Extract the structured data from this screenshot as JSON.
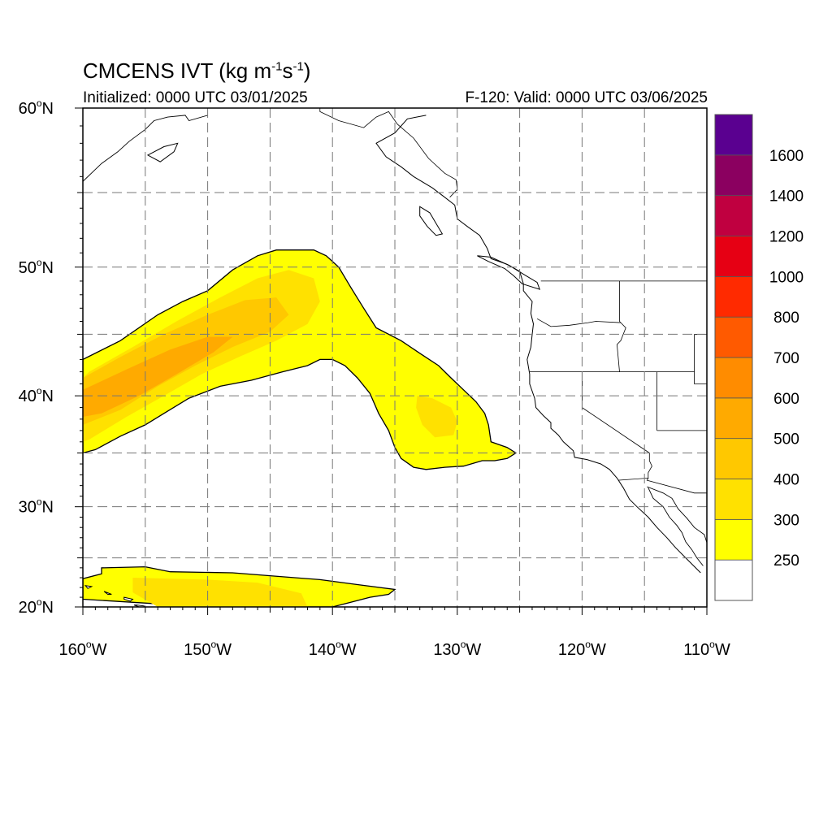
{
  "title": {
    "main": "CMCENS IVT (kg m",
    "exp1": "-1",
    "mid": "s",
    "exp2": "-1",
    "close": ")"
  },
  "subtitle_left": "Initialized: 0000 UTC 03/01/2025",
  "subtitle_right": "F-120: Valid: 0000 UTC 03/06/2025",
  "colorbar": {
    "labels": [
      "250",
      "300",
      "400",
      "500",
      "600",
      "700",
      "800",
      "1000",
      "1200",
      "1400",
      "1600"
    ],
    "colors": [
      "#ffffff",
      "#ffff00",
      "#ffe100",
      "#ffc800",
      "#ffaa00",
      "#ff8c00",
      "#ff5a00",
      "#ff2a00",
      "#e60014",
      "#c00040",
      "#8b0060",
      "#5a0090"
    ]
  },
  "chart_data": {
    "type": "heatmap",
    "title": "CMCENS IVT (kg m-1 s-1)",
    "xlim": [
      -160,
      -110
    ],
    "ylim": [
      20,
      60
    ],
    "grid": true,
    "x_tick_values": [
      -160,
      -150,
      -140,
      -130,
      -120,
      -110
    ],
    "x_tick_labels": [
      "160",
      "150",
      "140",
      "130",
      "120",
      "110"
    ],
    "x_tick_suffix": "W",
    "y_tick_values": [
      20,
      30,
      40,
      50,
      60
    ],
    "y_tick_labels": [
      "20",
      "30",
      "40",
      "50",
      "60"
    ],
    "y_tick_suffix": "N",
    "level_boundaries": [
      250,
      300,
      400,
      500,
      600,
      700,
      800,
      1000,
      1200,
      1400,
      1600
    ],
    "regions": [
      {
        "name": "",
        "level": 250,
        "polygon": [
          [
            -160,
            43
          ],
          [
            -157,
            44.5
          ],
          [
            -154,
            46.5
          ],
          [
            -152,
            47.5
          ],
          [
            -150,
            48.3
          ],
          [
            -148,
            49.8
          ],
          [
            -146,
            50.8
          ],
          [
            -144.5,
            51.2
          ],
          [
            -141.5,
            51.2
          ],
          [
            -140.5,
            50.8
          ],
          [
            -139.5,
            50
          ],
          [
            -138.5,
            48.5
          ],
          [
            -137.5,
            47
          ],
          [
            -136.5,
            45.5
          ],
          [
            -134.5,
            44.5
          ],
          [
            -133,
            43.5
          ],
          [
            -131.5,
            42.5
          ],
          [
            -130.5,
            41.5
          ],
          [
            -129.5,
            40.5
          ],
          [
            -128.5,
            39.5
          ],
          [
            -127.8,
            38.5
          ],
          [
            -127.5,
            37.5
          ],
          [
            -127.3,
            36
          ],
          [
            -126,
            35.5
          ],
          [
            -125.3,
            35
          ],
          [
            -126,
            34.5
          ],
          [
            -127,
            34.3
          ],
          [
            -128,
            34.3
          ],
          [
            -129.5,
            33.8
          ],
          [
            -131,
            33.7
          ],
          [
            -132.5,
            33.5
          ],
          [
            -133.5,
            33.7
          ],
          [
            -134.5,
            34.5
          ],
          [
            -135,
            35.5
          ],
          [
            -135.5,
            37
          ],
          [
            -136.3,
            38.5
          ],
          [
            -137,
            40.2
          ],
          [
            -138,
            41.5
          ],
          [
            -139,
            42.5
          ],
          [
            -140,
            43
          ],
          [
            -141,
            43
          ],
          [
            -142,
            42.5
          ],
          [
            -144,
            42
          ],
          [
            -146.5,
            41.3
          ],
          [
            -149,
            40.8
          ],
          [
            -151.5,
            39.8
          ],
          [
            -153.5,
            38.5
          ],
          [
            -155,
            37.5
          ],
          [
            -157,
            36.5
          ],
          [
            -159,
            35.3
          ],
          [
            -160,
            35
          ]
        ]
      },
      {
        "name": "",
        "level": 300,
        "polygon": [
          [
            -159.5,
            42
          ],
          [
            -156,
            44
          ],
          [
            -152.5,
            46
          ],
          [
            -149,
            47.8
          ],
          [
            -146,
            49.2
          ],
          [
            -143.5,
            49.8
          ],
          [
            -141.5,
            49.2
          ],
          [
            -141,
            47.5
          ],
          [
            -142,
            45.8
          ],
          [
            -144.5,
            44.5
          ],
          [
            -147.5,
            43.2
          ],
          [
            -150.5,
            41.8
          ],
          [
            -153.5,
            40
          ],
          [
            -156.5,
            38.2
          ],
          [
            -159.5,
            36.2
          ],
          [
            -160,
            36
          ],
          [
            -160,
            41.5
          ]
        ]
      },
      {
        "name": "",
        "level": 400,
        "polygon": [
          [
            -160,
            41.5
          ],
          [
            -157,
            43.2
          ],
          [
            -153.5,
            45
          ],
          [
            -150,
            46.5
          ],
          [
            -147,
            47.6
          ],
          [
            -144.5,
            47.8
          ],
          [
            -143.5,
            46.5
          ],
          [
            -145,
            45.2
          ],
          [
            -148,
            44
          ],
          [
            -151,
            42.5
          ],
          [
            -154,
            40.8
          ],
          [
            -157,
            38.8
          ],
          [
            -160,
            37.5
          ]
        ]
      },
      {
        "name": "",
        "level": 500,
        "polygon": [
          [
            -160,
            40.5
          ],
          [
            -156.5,
            42.2
          ],
          [
            -153,
            43.8
          ],
          [
            -150,
            44.8
          ],
          [
            -148,
            44.8
          ],
          [
            -149.5,
            43.6
          ],
          [
            -152.5,
            41.8
          ],
          [
            -155.5,
            40
          ],
          [
            -158.5,
            38.5
          ],
          [
            -160,
            38.2
          ]
        ]
      },
      {
        "name": "",
        "level": 300,
        "polygon": [
          [
            -133.2,
            40
          ],
          [
            -132,
            39.8
          ],
          [
            -130.5,
            39
          ],
          [
            -130,
            37.8
          ],
          [
            -130.3,
            36.6
          ],
          [
            -131.8,
            36.4
          ],
          [
            -132.8,
            37.5
          ],
          [
            -133.3,
            39
          ]
        ]
      },
      {
        "name": "",
        "level": 250,
        "polygon": [
          [
            -158.5,
            24
          ],
          [
            -155,
            24.1
          ],
          [
            -153,
            23.6
          ],
          [
            -148,
            23.5
          ],
          [
            -145,
            23.2
          ],
          [
            -141,
            22.8
          ],
          [
            -138,
            22.3
          ],
          [
            -135,
            21.8
          ],
          [
            -135.5,
            21.3
          ],
          [
            -137,
            21
          ],
          [
            -138.5,
            20.5
          ],
          [
            -140,
            20
          ],
          [
            -150,
            20
          ],
          [
            -160,
            20.8
          ],
          [
            -160,
            22.9
          ],
          [
            -158.5,
            23.4
          ]
        ]
      },
      {
        "name": "",
        "level": 300,
        "polygon": [
          [
            -156,
            23
          ],
          [
            -150,
            22.8
          ],
          [
            -146,
            22.5
          ],
          [
            -142.5,
            21.4
          ],
          [
            -142,
            20
          ],
          [
            -154,
            20
          ],
          [
            -156,
            21.5
          ]
        ]
      }
    ]
  },
  "map_data": {
    "graticule_lon": [
      -160,
      -155,
      -150,
      -145,
      -140,
      -135,
      -130,
      -125,
      -120,
      -115,
      -110
    ],
    "graticule_lat": [
      20,
      25,
      30,
      35,
      40,
      45,
      50,
      55,
      60
    ],
    "coastline": [
      [
        -132.5,
        59.6
      ],
      [
        -134,
        59.4
      ],
      [
        -135,
        58.6
      ],
      [
        -136.5,
        58
      ],
      [
        -135.7,
        57.2
      ],
      [
        -134.5,
        56.6
      ],
      [
        -133.5,
        56
      ],
      [
        -132,
        55.3
      ],
      [
        -131,
        54.7
      ],
      [
        -130.2,
        54.2
      ],
      [
        -130,
        53.3
      ],
      [
        -129.2,
        52.8
      ],
      [
        -128.2,
        52.2
      ],
      [
        -127.6,
        51.3
      ],
      [
        -127.3,
        50.6
      ],
      [
        -126,
        50.2
      ],
      [
        -125,
        49.7
      ],
      [
        -124.7,
        48.8
      ],
      [
        -124.7,
        48.3
      ],
      [
        -124,
        47.5
      ],
      [
        -124.1,
        46.6
      ],
      [
        -123.9,
        45.8
      ],
      [
        -124,
        45
      ],
      [
        -124.1,
        44
      ],
      [
        -124.4,
        43
      ],
      [
        -124.2,
        41.8
      ],
      [
        -124.2,
        41
      ],
      [
        -123.8,
        39.8
      ],
      [
        -123.7,
        39
      ],
      [
        -123.1,
        38.3
      ],
      [
        -122.5,
        37.7
      ],
      [
        -122.5,
        37.2
      ],
      [
        -121.9,
        36.6
      ],
      [
        -121.5,
        36
      ],
      [
        -120.7,
        35.2
      ],
      [
        -120.6,
        34.6
      ],
      [
        -119.6,
        34.4
      ],
      [
        -118.5,
        34
      ],
      [
        -117.8,
        33.5
      ],
      [
        -117.2,
        32.7
      ],
      [
        -116.7,
        31.8
      ],
      [
        -116.2,
        30.7
      ],
      [
        -115.6,
        30
      ],
      [
        -114.7,
        29
      ],
      [
        -114,
        28
      ],
      [
        -113.2,
        27
      ],
      [
        -112.5,
        26
      ],
      [
        -111.7,
        25
      ],
      [
        -110.5,
        23.5
      ]
    ],
    "baja_inner": [
      [
        -114.7,
        31.8
      ],
      [
        -114.3,
        30.8
      ],
      [
        -113.5,
        30
      ],
      [
        -113,
        29
      ],
      [
        -112.4,
        28.2
      ],
      [
        -112,
        27.5
      ],
      [
        -111.7,
        26.6
      ],
      [
        -111.2,
        25.8
      ],
      [
        -110.8,
        25
      ],
      [
        -110.3,
        24.2
      ]
    ],
    "mainland_mx": [
      [
        -114.8,
        31.9
      ],
      [
        -113.5,
        31.3
      ],
      [
        -112.8,
        30.8
      ],
      [
        -112.3,
        29.8
      ],
      [
        -111.6,
        28.9
      ],
      [
        -111,
        28
      ],
      [
        -110.2,
        27.3
      ],
      [
        -110,
        26.5
      ],
      [
        -110,
        25.8
      ]
    ],
    "vancouver_island": [
      [
        -128.4,
        50.8
      ],
      [
        -127.5,
        50.4
      ],
      [
        -126.2,
        49.9
      ],
      [
        -125.5,
        49.4
      ],
      [
        -124.8,
        48.8
      ],
      [
        -123.4,
        48.4
      ],
      [
        -123.6,
        48.9
      ],
      [
        -124.7,
        49.5
      ],
      [
        -125.8,
        50.1
      ],
      [
        -127.3,
        50.7
      ],
      [
        -128.4,
        50.8
      ]
    ],
    "haida_gwaii": [
      [
        -133,
        54.1
      ],
      [
        -132.2,
        53.7
      ],
      [
        -131.7,
        53
      ],
      [
        -131.2,
        52.3
      ],
      [
        -131.7,
        52.2
      ],
      [
        -132.4,
        52.8
      ],
      [
        -133,
        53.5
      ],
      [
        -133,
        54.1
      ]
    ],
    "alaska_sw": [
      [
        -160,
        55.7
      ],
      [
        -158.5,
        56.8
      ],
      [
        -157.2,
        57.5
      ],
      [
        -156.3,
        58.1
      ],
      [
        -155,
        58.8
      ],
      [
        -154.3,
        59.3
      ],
      [
        -153.2,
        59.5
      ],
      [
        -151.8,
        59.6
      ],
      [
        -151.5,
        59.3
      ],
      [
        -150,
        59.6
      ]
    ],
    "kodiak": [
      [
        -154.8,
        57.3
      ],
      [
        -153.5,
        57.8
      ],
      [
        -152.4,
        58
      ],
      [
        -152.7,
        57.5
      ],
      [
        -153.8,
        56.9
      ],
      [
        -154.8,
        57.3
      ]
    ],
    "hawaii_islands": [
      [
        [
          -155.9,
          20.2
        ],
        [
          -155.1,
          19.8
        ],
        [
          -155.1,
          20.1
        ],
        [
          -155.7,
          20.2
        ],
        [
          -155.9,
          20.2
        ]
      ],
      [
        [
          -156.7,
          21
        ],
        [
          -156,
          20.8
        ],
        [
          -156.2,
          20.6
        ],
        [
          -156.7,
          20.8
        ],
        [
          -156.7,
          21
        ]
      ],
      [
        [
          -158.3,
          21.6
        ],
        [
          -157.7,
          21.3
        ],
        [
          -158,
          21.3
        ],
        [
          -158.3,
          21.6
        ]
      ],
      [
        [
          -159.8,
          22.2
        ],
        [
          -159.3,
          22.1
        ],
        [
          -159.6,
          21.9
        ],
        [
          -159.8,
          22.2
        ]
      ]
    ],
    "borders": [
      [
        [
          -123.3,
          49
        ],
        [
          -110,
          49
        ]
      ],
      [
        [
          -117,
          49
        ],
        [
          -117,
          46
        ],
        [
          -116.9,
          45.9
        ],
        [
          -116.5,
          45.5
        ],
        [
          -116.9,
          44.5
        ],
        [
          -117.2,
          44.2
        ],
        [
          -117,
          42
        ]
      ],
      [
        [
          -124.2,
          42
        ],
        [
          -111,
          42
        ],
        [
          -111,
          41
        ],
        [
          -110,
          41
        ]
      ],
      [
        [
          -120,
          42
        ],
        [
          -120,
          39
        ],
        [
          -114.6,
          35
        ]
      ],
      [
        [
          -114,
          42
        ],
        [
          -114,
          37
        ]
      ],
      [
        [
          -114,
          37
        ],
        [
          -110,
          37
        ]
      ],
      [
        [
          -111,
          45
        ],
        [
          -110,
          45
        ]
      ],
      [
        [
          -111,
          45
        ],
        [
          -111,
          42
        ]
      ],
      [
        [
          -123.6,
          46.2
        ],
        [
          -122.5,
          45.6
        ],
        [
          -121,
          45.7
        ],
        [
          -119.5,
          45.9
        ],
        [
          -118.9,
          46
        ],
        [
          -116.9,
          45.9
        ]
      ],
      [
        [
          -117.1,
          32.5
        ],
        [
          -114.7,
          32.7
        ],
        [
          -114.8,
          32.5
        ],
        [
          -111,
          31.3
        ],
        [
          -110,
          31.3
        ]
      ],
      [
        [
          -114.6,
          35
        ],
        [
          -114.6,
          34.3
        ],
        [
          -114.4,
          33.8
        ],
        [
          -114.7,
          33.2
        ],
        [
          -114.7,
          32.7
        ]
      ],
      [
        [
          -141,
          60
        ],
        [
          -141,
          59.8
        ],
        [
          -139.5,
          59.3
        ],
        [
          -137.5,
          58.9
        ],
        [
          -136.5,
          59.5
        ],
        [
          -135.5,
          59.8
        ],
        [
          -134.8,
          59.1
        ],
        [
          -133.5,
          58.3
        ],
        [
          -132.3,
          57.1
        ],
        [
          -131,
          56.2
        ],
        [
          -130.1,
          55.8
        ],
        [
          -130,
          55.2
        ],
        [
          -130.6,
          54.7
        ]
      ]
    ]
  }
}
